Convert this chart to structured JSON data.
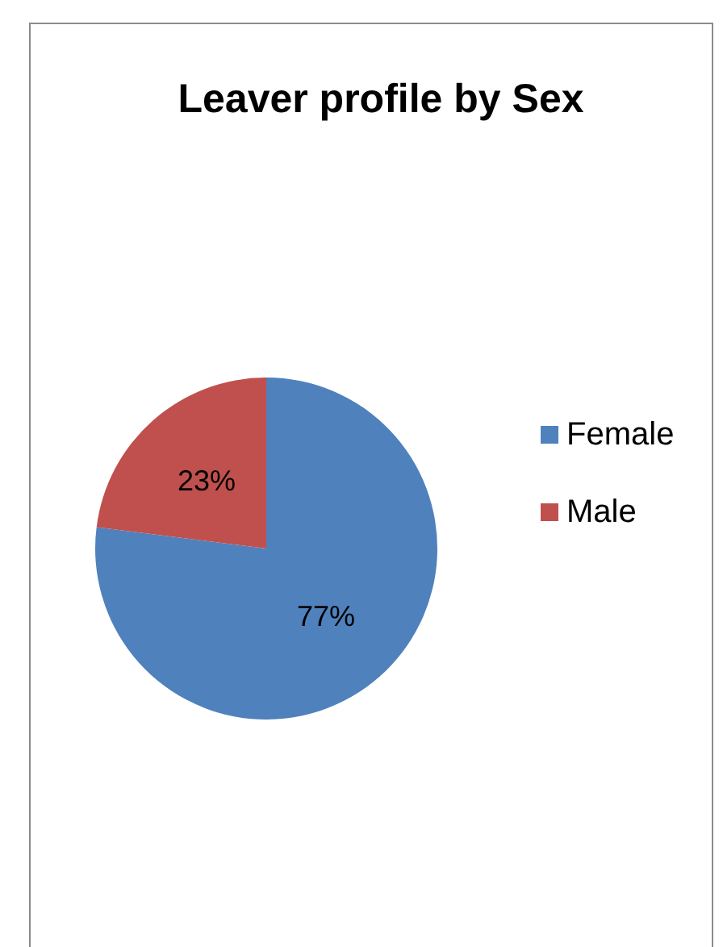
{
  "chart_data": {
    "type": "pie",
    "title": "Leaver profile by Sex",
    "categories": [
      "Female",
      "Male"
    ],
    "values": [
      77,
      23
    ],
    "colors": [
      "#4f81bd",
      "#c0504d"
    ],
    "value_labels": [
      "77%",
      "23%"
    ],
    "legend": "right"
  }
}
